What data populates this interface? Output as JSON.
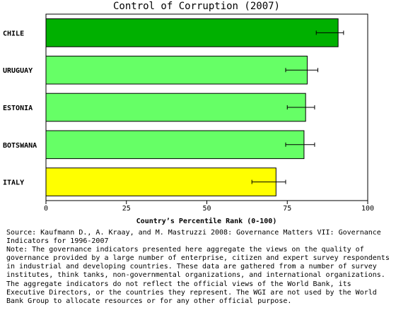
{
  "chart_data": {
    "type": "bar",
    "orientation": "horizontal",
    "title": "Control of Corruption (2007)",
    "xlabel": "Country’s Percentile Rank (0-100)",
    "ylabel": "",
    "xlim": [
      0,
      100
    ],
    "xticks": [
      0,
      25,
      50,
      75,
      100
    ],
    "grid": false,
    "categories": [
      "CHILE",
      "URUGUAY",
      "ESTONIA",
      "BOTSWANA",
      "ITALY"
    ],
    "values": [
      90.8,
      81.2,
      80.7,
      80.2,
      71.5
    ],
    "error_low": [
      84.0,
      74.5,
      75.0,
      74.5,
      64.0
    ],
    "error_high": [
      92.5,
      84.5,
      83.5,
      83.5,
      74.5
    ],
    "colors": [
      "#00b000",
      "#66ff66",
      "#66ff66",
      "#66ff66",
      "#ffff00"
    ]
  },
  "notes": {
    "source": "Source: Kaufmann D., A. Kraay, and M. Mastruzzi 2008: Governance Matters VII: Governance Indicators for 1996-2007",
    "note": "Note: The governance indicators presented here aggregate the views on the quality of governance provided by a large number of enterprise, citizen and expert survey respondents in industrial and developing countries. These data are gathered from a number of survey institutes, think tanks, non-governmental organizations, and international organizations. The aggregate indicators do not reflect the official views of the World Bank, its Executive Directors, or the countries they represent. The WGI are not used by the World Bank Group to allocate resources or for any other official purpose."
  }
}
